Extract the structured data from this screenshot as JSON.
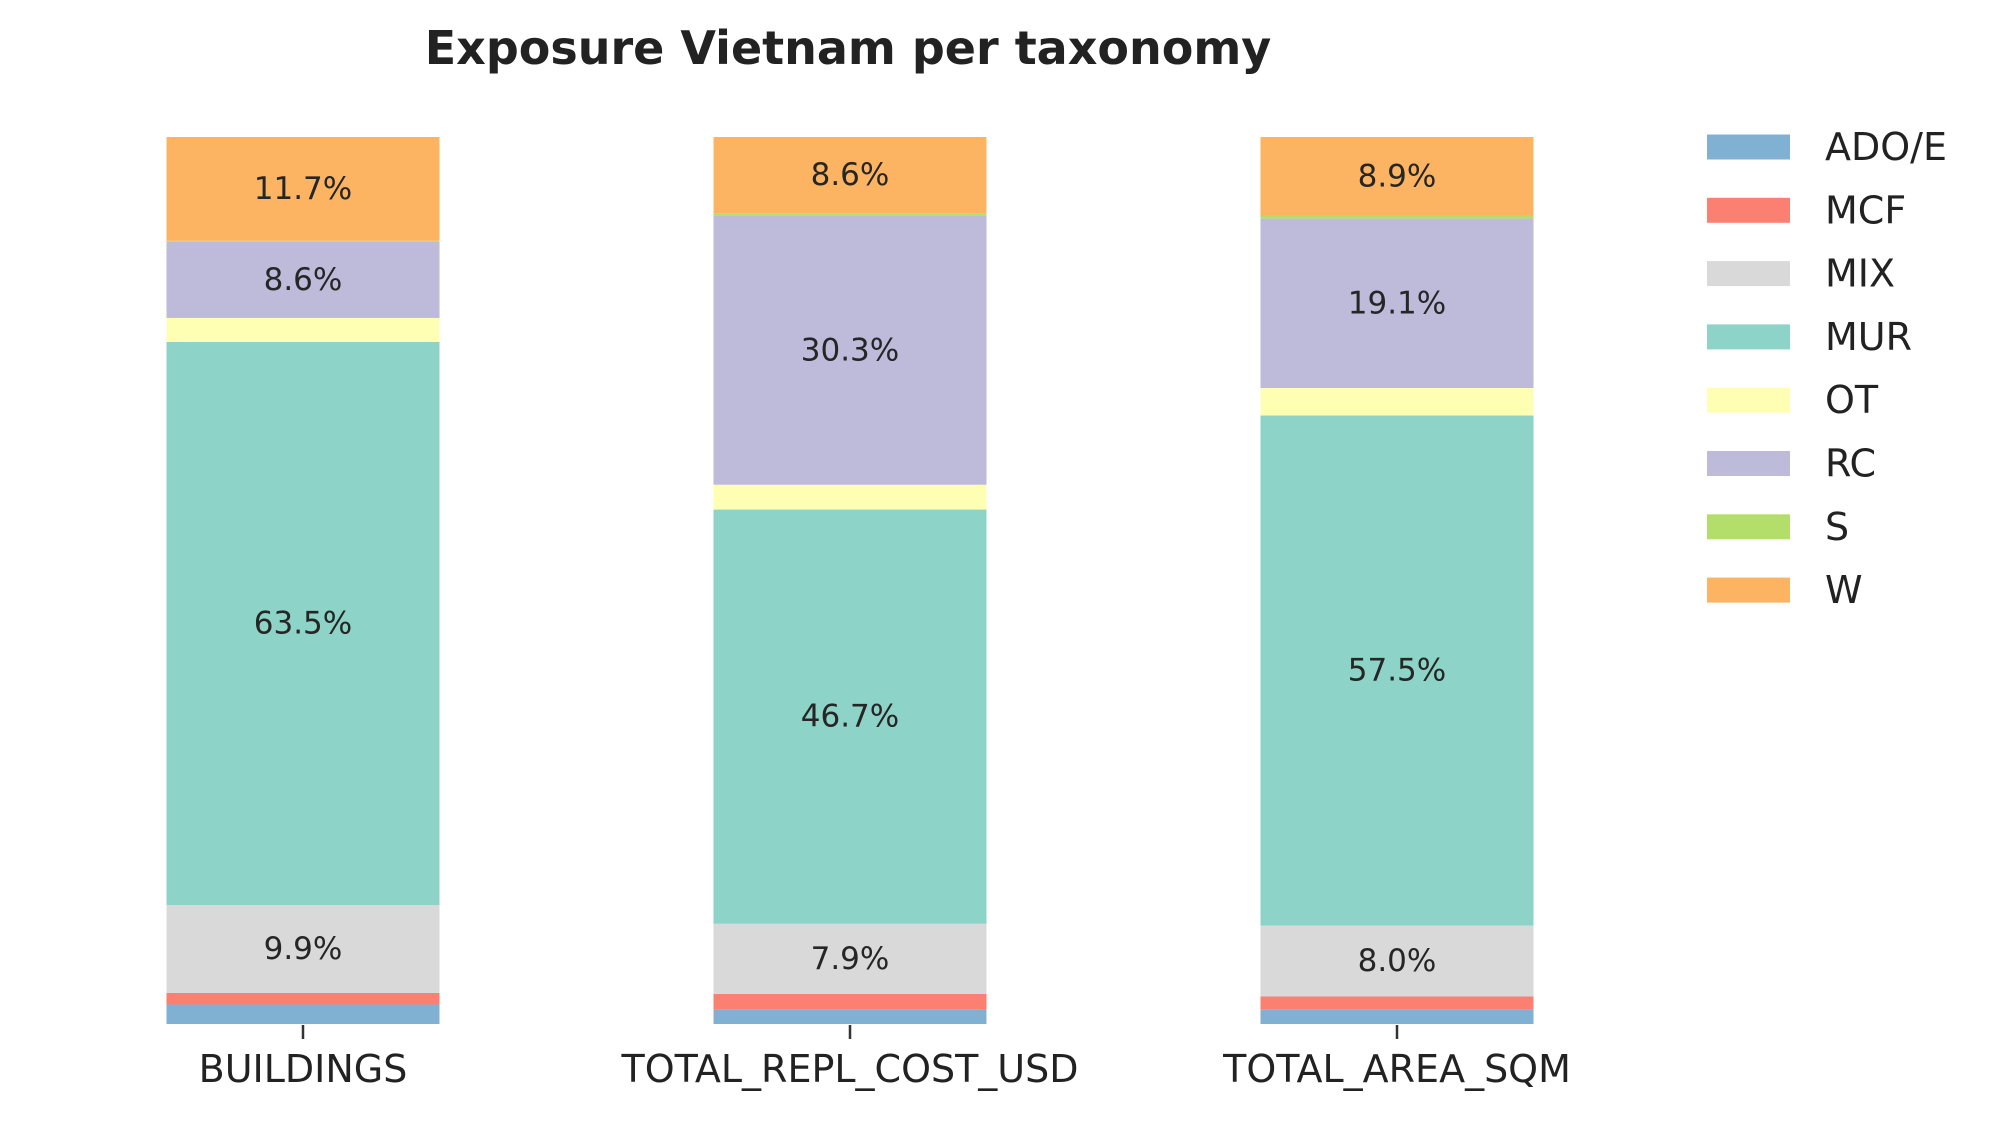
{
  "chart_data": {
    "type": "bar",
    "stacked": true,
    "normalized": true,
    "title": "Exposure Vietnam per taxonomy",
    "xlabel": "",
    "ylabel": "",
    "ylim": [
      0,
      100
    ],
    "grid": false,
    "legend_position": "right",
    "categories": [
      "BUILDINGS",
      "TOTAL_REPL_COST_USD",
      "TOTAL_AREA_SQM"
    ],
    "series": [
      {
        "name": "ADO/E",
        "color": "#80b1d3",
        "values": [
          2.2,
          1.6,
          1.6
        ]
      },
      {
        "name": "MCF",
        "color": "#fb8072",
        "values": [
          1.3,
          1.8,
          1.5
        ]
      },
      {
        "name": "MIX",
        "color": "#d9d9d9",
        "values": [
          9.9,
          7.9,
          8.0
        ]
      },
      {
        "name": "MUR",
        "color": "#8dd3c7",
        "values": [
          63.5,
          46.7,
          57.5
        ]
      },
      {
        "name": "OT",
        "color": "#ffffb3",
        "values": [
          2.7,
          2.8,
          3.1
        ]
      },
      {
        "name": "RC",
        "color": "#bebada",
        "values": [
          8.6,
          30.3,
          19.1
        ]
      },
      {
        "name": "S",
        "color": "#b3de69",
        "values": [
          0.1,
          0.3,
          0.3
        ]
      },
      {
        "name": "W",
        "color": "#fdb462",
        "values": [
          11.7,
          8.6,
          8.9
        ]
      }
    ],
    "data_labels": [
      {
        "series": "W",
        "category": "BUILDINGS",
        "text": "11.7%"
      },
      {
        "series": "RC",
        "category": "BUILDINGS",
        "text": "8.6%"
      },
      {
        "series": "MUR",
        "category": "BUILDINGS",
        "text": "63.5%"
      },
      {
        "series": "MIX",
        "category": "BUILDINGS",
        "text": "9.9%"
      },
      {
        "series": "W",
        "category": "TOTAL_REPL_COST_USD",
        "text": "8.6%"
      },
      {
        "series": "RC",
        "category": "TOTAL_REPL_COST_USD",
        "text": "30.3%"
      },
      {
        "series": "MUR",
        "category": "TOTAL_REPL_COST_USD",
        "text": "46.7%"
      },
      {
        "series": "MIX",
        "category": "TOTAL_REPL_COST_USD",
        "text": "7.9%"
      },
      {
        "series": "W",
        "category": "TOTAL_AREA_SQM",
        "text": "8.9%"
      },
      {
        "series": "RC",
        "category": "TOTAL_AREA_SQM",
        "text": "19.1%"
      },
      {
        "series": "MUR",
        "category": "TOTAL_AREA_SQM",
        "text": "57.5%"
      },
      {
        "series": "MIX",
        "category": "TOTAL_AREA_SQM",
        "text": "8.0%"
      }
    ]
  }
}
